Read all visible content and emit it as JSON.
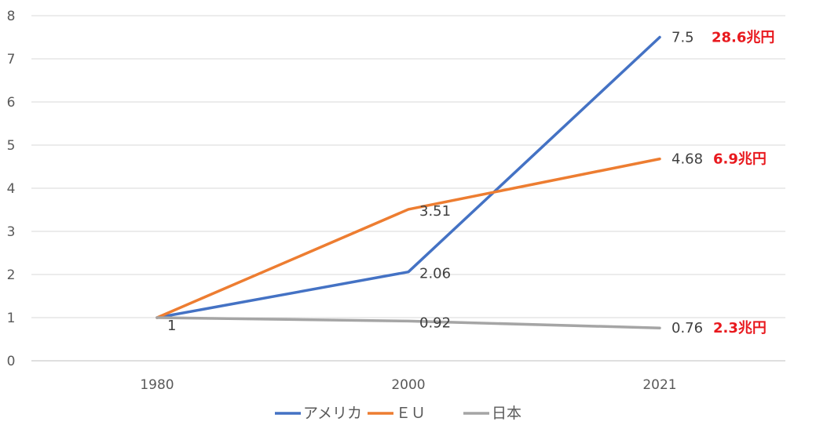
{
  "chart_data": {
    "type": "line",
    "categories": [
      "1980",
      "2000",
      "2021"
    ],
    "ylim": [
      0,
      8
    ],
    "yticks": [
      0,
      1,
      2,
      3,
      4,
      5,
      6,
      7,
      8
    ],
    "grid": true,
    "legend": "bottom",
    "series": [
      {
        "name": "アメリカ",
        "color": "#4472c4",
        "values": [
          1,
          2.06,
          7.5
        ],
        "labels": [
          "",
          "2.06",
          "7.5"
        ]
      },
      {
        "name": "ＥＵ",
        "color": "#ed7d31",
        "values": [
          1,
          3.51,
          4.68
        ],
        "labels": [
          "",
          "3.51",
          "4.68"
        ]
      },
      {
        "name": "日本",
        "color": "#a5a5a5",
        "values": [
          1,
          0.92,
          0.76
        ],
        "labels": [
          "1",
          "0.92",
          "0.76"
        ]
      }
    ],
    "annotations": [
      {
        "text": "28.6兆円",
        "series": 0,
        "index": 2
      },
      {
        "text": "6.9兆円",
        "series": 1,
        "index": 2
      },
      {
        "text": "2.3兆円",
        "series": 2,
        "index": 2
      }
    ],
    "annotation_color": "#e8191e"
  }
}
